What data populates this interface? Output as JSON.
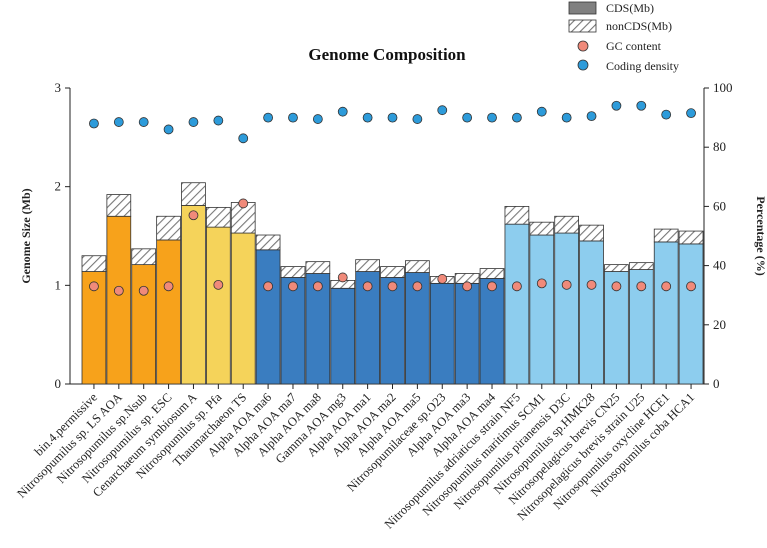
{
  "chart_data": {
    "type": "bar",
    "title": "Genome Composition",
    "ylabel": "Genome Size (Mb)",
    "y2label": "Percentage (%)",
    "ylim": [
      0,
      3
    ],
    "y2lim": [
      0,
      100
    ],
    "yticks": [
      "0",
      "1",
      "2",
      "3"
    ],
    "y2ticks": [
      "0",
      "20",
      "40",
      "60",
      "80",
      "100"
    ],
    "legend_position": "top-right",
    "categories": [
      "bin.4.permissive",
      "Nitrosopumilus sp. LS AOA",
      "Nitrosopumilus sp.Nsub",
      "Nitrosopumilus sp. ESC",
      "Cenarchaeum symbiosum A",
      "Nitrosopumilus sp. Pfa",
      "Thaumarchaeon TS",
      "Alpha AOA ma6",
      "Alpha AOA ma7",
      "Alpha AOA ma8",
      "Gamma AOA mg3",
      "Alpha AOA ma1",
      "Alpha AOA ma2",
      "Alpha AOA ma5",
      "Nitrosopumilaceae sp.O23",
      "Alpha AOA ma3",
      "Alpha AOA ma4",
      "Nitrosopumilus adriaticus strain NF5",
      "Nitrosopumilus maritimus SCM1",
      "Nitrosopumilus piranensis D3C",
      "Nitrosopumilus sp.HMK28",
      "Nitrosopelagicus brevis CN25",
      "Nitrosopelagicus brevis strain U25",
      "Nitrosopumilus oxycline HCE1",
      "Nitrosopumilus coba HCA1"
    ],
    "group_colors": [
      "#F7A21B",
      "#F7A21B",
      "#F7A21B",
      "#F7A21B",
      "#F5D35A",
      "#F5D35A",
      "#F5D35A",
      "#3A7DC0",
      "#3A7DC0",
      "#3A7DC0",
      "#3A7DC0",
      "#3A7DC0",
      "#3A7DC0",
      "#3A7DC0",
      "#3A7DC0",
      "#3A7DC0",
      "#3A7DC0",
      "#8DCDEE",
      "#8DCDEE",
      "#8DCDEE",
      "#8DCDEE",
      "#8DCDEE",
      "#8DCDEE",
      "#8DCDEE",
      "#8DCDEE"
    ],
    "series": [
      {
        "name": "CDS(Mb)",
        "kind": "bar-stack-base",
        "values": [
          1.14,
          1.7,
          1.21,
          1.46,
          1.81,
          1.59,
          1.53,
          1.36,
          1.08,
          1.12,
          0.97,
          1.14,
          1.08,
          1.13,
          1.02,
          1.02,
          1.07,
          1.62,
          1.51,
          1.53,
          1.45,
          1.14,
          1.16,
          1.44,
          1.42
        ]
      },
      {
        "name": "nonCDS(Mb)",
        "kind": "bar-stack-top",
        "values": [
          0.16,
          0.22,
          0.16,
          0.24,
          0.23,
          0.2,
          0.31,
          0.15,
          0.11,
          0.12,
          0.08,
          0.12,
          0.11,
          0.12,
          0.07,
          0.1,
          0.1,
          0.18,
          0.13,
          0.17,
          0.16,
          0.07,
          0.07,
          0.13,
          0.13
        ]
      },
      {
        "name": "GC content",
        "kind": "point-y2",
        "color": "#F08A7A",
        "values": [
          33,
          31.5,
          31.5,
          33,
          57,
          33.5,
          61,
          33,
          33,
          33,
          36,
          33,
          33,
          33,
          35.5,
          33,
          33,
          33,
          34,
          33.5,
          33.5,
          33,
          33,
          33,
          33
        ]
      },
      {
        "name": "Coding density",
        "kind": "point-y2",
        "color": "#2D9BDA",
        "values": [
          88,
          88.5,
          88.5,
          86,
          88.5,
          89,
          83,
          90,
          90,
          89.5,
          92,
          90,
          90,
          89.5,
          92.5,
          90,
          90,
          90,
          92,
          90,
          90.5,
          94,
          94,
          91,
          91.5
        ]
      }
    ]
  }
}
